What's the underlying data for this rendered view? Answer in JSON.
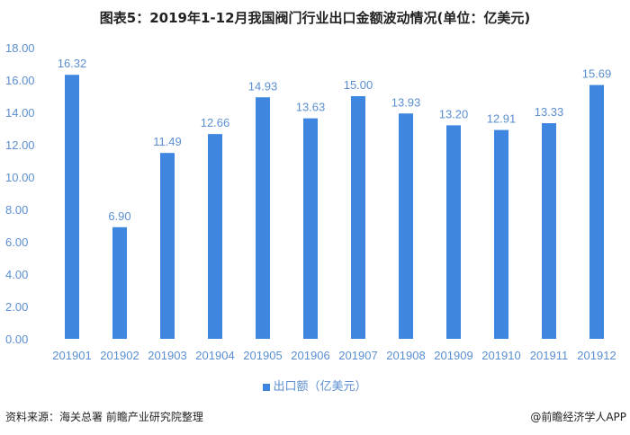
{
  "chart_data": {
    "type": "bar",
    "title": "图表5：2019年1-12月我国阀门行业出口金额波动情况(单位：亿美元)",
    "categories": [
      "201901",
      "201902",
      "201903",
      "201904",
      "201905",
      "201906",
      "201907",
      "201908",
      "201909",
      "201910",
      "201911",
      "201912"
    ],
    "series": [
      {
        "name": "出口额（亿美元）",
        "values": [
          16.32,
          6.9,
          11.49,
          12.66,
          14.93,
          13.63,
          15.0,
          13.93,
          13.2,
          12.91,
          13.33,
          15.69
        ]
      }
    ],
    "data_labels": [
      "16.32",
      "6.90",
      "11.49",
      "12.66",
      "14.93",
      "13.63",
      "15.00",
      "13.93",
      "13.20",
      "12.91",
      "13.33",
      "15.69"
    ],
    "yticks": [
      "0.00",
      "2.00",
      "4.00",
      "6.00",
      "8.00",
      "10.00",
      "12.00",
      "14.00",
      "16.00",
      "18.00"
    ],
    "ylim": [
      0,
      18
    ],
    "grid": false,
    "legend_position": "bottom",
    "bar_color": "#3f86e0",
    "label_color": "#5b8fd0"
  },
  "footer": {
    "source": "资料来源：海关总署 前瞻产业研究院整理",
    "credit": "@前瞻经济学人APP"
  }
}
